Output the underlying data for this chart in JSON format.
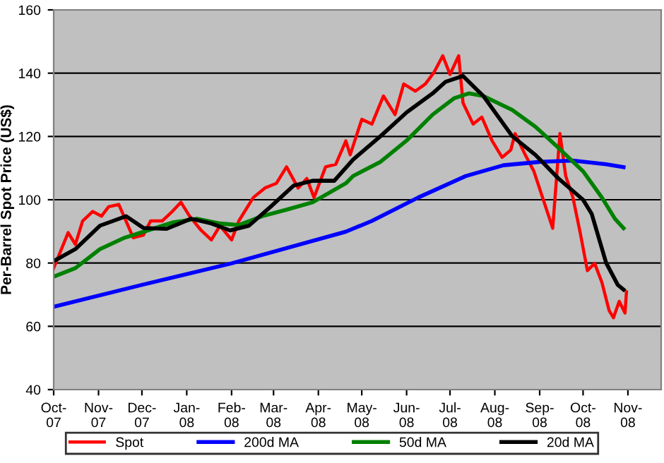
{
  "chart_data": {
    "type": "line",
    "ylabel": "Per-Barrel Spot Price (US$)",
    "ylim": [
      40,
      160
    ],
    "yticks": [
      40,
      60,
      80,
      100,
      120,
      140,
      160
    ],
    "xlim": [
      "2007-10-01",
      "2008-11-24"
    ],
    "xticks": [
      {
        "value": "2007-10-01",
        "label": "Oct-\n07"
      },
      {
        "value": "2007-11-01",
        "label": "Nov-\n07"
      },
      {
        "value": "2007-12-01",
        "label": "Dec-\n07"
      },
      {
        "value": "2008-01-01",
        "label": "Jan-\n08"
      },
      {
        "value": "2008-02-01",
        "label": "Feb-\n08"
      },
      {
        "value": "2008-03-01",
        "label": "Mar-\n08"
      },
      {
        "value": "2008-04-01",
        "label": "Apr-\n08"
      },
      {
        "value": "2008-05-01",
        "label": "May-\n08"
      },
      {
        "value": "2008-06-01",
        "label": "Jun-\n08"
      },
      {
        "value": "2008-07-01",
        "label": "Jul-\n08"
      },
      {
        "value": "2008-08-01",
        "label": "Aug-\n08"
      },
      {
        "value": "2008-09-01",
        "label": "Sep-\n08"
      },
      {
        "value": "2008-10-01",
        "label": "Oct-\n08"
      },
      {
        "value": "2008-11-01",
        "label": "Nov-\n08"
      }
    ],
    "grid": "y",
    "legend": "bottom",
    "marker": "none",
    "line_style": "solid",
    "series": [
      {
        "name": "Spot",
        "color": "#ff0000",
        "x": [
          "2007-10-01",
          "2007-10-11",
          "2007-10-16",
          "2007-10-21",
          "2007-10-28",
          "2007-11-03",
          "2007-11-08",
          "2007-11-15",
          "2007-11-20",
          "2007-11-25",
          "2007-12-02",
          "2007-12-07",
          "2007-12-15",
          "2007-12-22",
          "2007-12-28",
          "2008-01-03",
          "2008-01-11",
          "2008-01-18",
          "2008-01-24",
          "2008-02-01",
          "2008-02-06",
          "2008-02-16",
          "2008-02-24",
          "2008-03-03",
          "2008-03-10",
          "2008-03-18",
          "2008-03-24",
          "2008-03-29",
          "2008-04-06",
          "2008-04-13",
          "2008-04-20",
          "2008-04-23",
          "2008-05-01",
          "2008-05-08",
          "2008-05-16",
          "2008-05-24",
          "2008-05-30",
          "2008-06-07",
          "2008-06-14",
          "2008-06-20",
          "2008-06-26",
          "2008-07-01",
          "2008-07-07",
          "2008-07-10",
          "2008-07-17",
          "2008-07-23",
          "2008-07-30",
          "2008-08-06",
          "2008-08-12",
          "2008-08-15",
          "2008-08-22",
          "2008-08-28",
          "2008-09-03",
          "2008-09-10",
          "2008-09-15",
          "2008-09-19",
          "2008-09-24",
          "2008-09-29",
          "2008-10-04",
          "2008-10-09",
          "2008-10-14",
          "2008-10-19",
          "2008-10-22",
          "2008-10-26",
          "2008-10-30",
          "2008-10-31"
        ],
        "values": [
          78.4,
          89.6,
          85.9,
          93.3,
          96.3,
          94.8,
          97.8,
          98.5,
          93.3,
          88,
          88.8,
          93.3,
          93.3,
          96.3,
          99.2,
          94.8,
          90.3,
          87.3,
          91.8,
          87.3,
          93.3,
          100.7,
          103.7,
          105.2,
          110.4,
          103.7,
          106.7,
          100.7,
          110.4,
          111.2,
          118.6,
          114.2,
          125.4,
          123.9,
          132.8,
          126.9,
          136.6,
          134.3,
          136.6,
          140.3,
          145.5,
          139.6,
          145.5,
          130.6,
          123.9,
          126.1,
          118.7,
          113.4,
          115.7,
          120.9,
          114.2,
          109,
          100.7,
          91,
          120.9,
          107.5,
          100.7,
          89.6,
          77.6,
          79.9,
          73.9,
          65,
          62.7,
          67.9,
          64.2,
          70.9
        ]
      },
      {
        "name": "200d MA",
        "color": "#0000ff",
        "x": [
          "2007-10-01",
          "2007-12-02",
          "2008-02-01",
          "2008-04-20",
          "2008-05-08",
          "2008-06-09",
          "2008-07-12",
          "2008-08-07",
          "2008-09-02",
          "2008-09-24",
          "2008-10-17",
          "2008-10-29"
        ],
        "values": [
          66.2,
          73.2,
          79.9,
          89.9,
          93.3,
          100.7,
          107.5,
          110.9,
          112,
          112.4,
          111.2,
          110.3
        ]
      },
      {
        "name": "50d MA",
        "color": "#008000",
        "x": [
          "2007-10-01",
          "2007-10-16",
          "2007-11-02",
          "2007-11-19",
          "2007-12-05",
          "2007-12-22",
          "2008-01-08",
          "2008-01-24",
          "2008-02-06",
          "2008-02-22",
          "2008-03-11",
          "2008-03-28",
          "2008-04-20",
          "2008-04-25",
          "2008-05-14",
          "2008-06-01",
          "2008-06-19",
          "2008-07-04",
          "2008-07-14",
          "2008-07-24",
          "2008-08-13",
          "2008-08-29",
          "2008-09-14",
          "2008-10-01",
          "2008-10-14",
          "2008-10-23",
          "2008-10-29"
        ],
        "values": [
          75.7,
          78.4,
          84.4,
          88,
          90.3,
          92.8,
          94,
          92.5,
          92,
          94.8,
          97,
          99.2,
          105.2,
          107.5,
          112,
          118.7,
          126.9,
          132.1,
          133.6,
          132.8,
          128.4,
          123.1,
          116.4,
          109,
          100.7,
          94,
          91
        ]
      },
      {
        "name": "20d MA",
        "color": "#000000",
        "x": [
          "2007-10-01",
          "2007-10-16",
          "2007-11-02",
          "2007-11-20",
          "2007-12-02",
          "2007-12-18",
          "2008-01-04",
          "2008-01-18",
          "2008-01-31",
          "2008-02-13",
          "2008-02-28",
          "2008-03-15",
          "2008-03-28",
          "2008-04-12",
          "2008-04-25",
          "2008-05-14",
          "2008-06-01",
          "2008-06-19",
          "2008-06-28",
          "2008-07-10",
          "2008-07-24",
          "2008-08-13",
          "2008-08-29",
          "2008-09-14",
          "2008-10-01",
          "2008-10-07",
          "2008-10-17",
          "2008-10-25",
          "2008-10-29"
        ],
        "values": [
          80.6,
          84.4,
          91.8,
          94.8,
          91.1,
          90.8,
          94,
          92.5,
          90.3,
          91.8,
          97.8,
          104.5,
          106,
          106,
          112.7,
          120.1,
          127.6,
          133.6,
          137.3,
          139.1,
          132.8,
          120.1,
          114.2,
          106.7,
          100,
          95.5,
          80,
          73.1,
          71.6
        ]
      }
    ]
  }
}
